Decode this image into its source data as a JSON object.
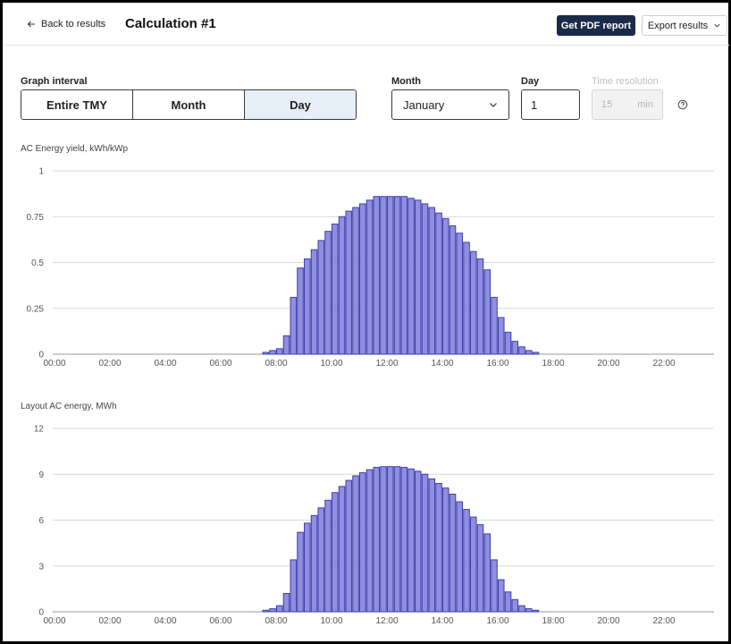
{
  "header": {
    "back_label": "Back to results",
    "title": "Calculation #1",
    "pdf_label": "Get PDF report",
    "export_label": "Export results"
  },
  "controls": {
    "graph_interval_label": "Graph interval",
    "tabs": [
      "Entire TMY",
      "Month",
      "Day"
    ],
    "active_tab": "Day",
    "month_label": "Month",
    "month_value": "January",
    "day_label": "Day",
    "day_value": "1",
    "time_resolution_label": "Time resolution",
    "time_resolution_value": "15",
    "time_resolution_unit": "min"
  },
  "icons": {
    "back": "arrow-left-icon",
    "export": "chevron-down-icon",
    "select": "chevron-down-icon",
    "help": "help-circle-icon"
  },
  "colors": {
    "bar_fill": "#8f8ee2",
    "bar_stroke": "#3f3fa6",
    "primary_button": "#1a2b4a",
    "active_tab": "#e6eef8"
  },
  "chart_data": [
    {
      "type": "bar",
      "title": "AC Energy yield, kWh/kWp",
      "x_ticks": [
        "00:00",
        "02:00",
        "04:00",
        "06:00",
        "08:00",
        "10:00",
        "12:00",
        "14:00",
        "16:00",
        "18:00",
        "20:00",
        "22:00"
      ],
      "y_ticks": [
        "0",
        "0.25",
        "0.5",
        "0.75",
        "1"
      ],
      "ylim": [
        0,
        1
      ],
      "grid": true,
      "interval_minutes": 15,
      "start_time": "07:30",
      "values": [
        0.01,
        0.02,
        0.03,
        0.1,
        0.31,
        0.47,
        0.52,
        0.57,
        0.62,
        0.67,
        0.71,
        0.75,
        0.78,
        0.8,
        0.82,
        0.84,
        0.86,
        0.86,
        0.86,
        0.86,
        0.86,
        0.85,
        0.84,
        0.82,
        0.8,
        0.77,
        0.74,
        0.7,
        0.66,
        0.61,
        0.56,
        0.52,
        0.46,
        0.31,
        0.2,
        0.12,
        0.07,
        0.04,
        0.02,
        0.01
      ]
    },
    {
      "type": "bar",
      "title": "Layout AC energy, MWh",
      "x_ticks": [
        "00:00",
        "02:00",
        "04:00",
        "06:00",
        "08:00",
        "10:00",
        "12:00",
        "14:00",
        "16:00",
        "18:00",
        "20:00",
        "22:00"
      ],
      "y_ticks": [
        "0",
        "3",
        "6",
        "9",
        "12"
      ],
      "ylim": [
        0,
        12
      ],
      "grid": true,
      "interval_minutes": 15,
      "start_time": "07:30",
      "values": [
        0.1,
        0.2,
        0.4,
        1.2,
        3.4,
        5.2,
        5.8,
        6.3,
        6.8,
        7.3,
        7.8,
        8.2,
        8.6,
        8.9,
        9.1,
        9.3,
        9.45,
        9.5,
        9.5,
        9.5,
        9.45,
        9.35,
        9.2,
        9.0,
        8.7,
        8.4,
        8.1,
        7.7,
        7.2,
        6.7,
        6.2,
        5.7,
        5.1,
        3.4,
        2.1,
        1.3,
        0.8,
        0.4,
        0.2,
        0.1
      ]
    }
  ]
}
